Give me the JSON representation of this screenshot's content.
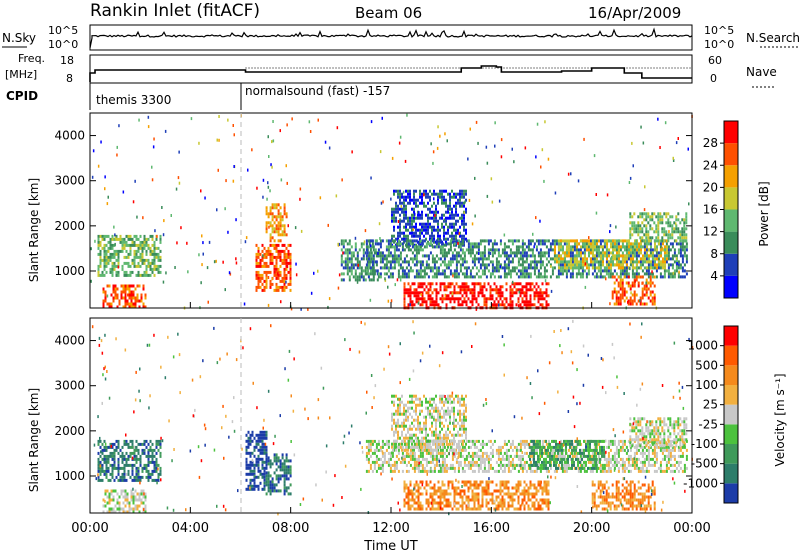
{
  "header": {
    "station": "Rankin Inlet (fitACF)",
    "beam": "Beam 06",
    "date": "16/Apr/2009"
  },
  "noise_panel": {
    "left_label": "N.Sky",
    "left_ticks": [
      "10^5",
      "10^0"
    ],
    "right_ticks": [
      "10^5",
      "10^0"
    ],
    "right_label": "N.Search"
  },
  "freq_panel": {
    "left_label_1": "Freq.",
    "left_label_2": "[MHz]",
    "left_ticks": [
      "18",
      "8"
    ],
    "right_ticks": [
      "60",
      "0"
    ],
    "right_label": "Nave",
    "cpid_label": "CPID",
    "cpid_1": "themis 3300",
    "cpid_2": "normalsound (fast) -157"
  },
  "chart_data": [
    {
      "type": "heatmap",
      "name": "power",
      "ylabel": "Slant Range [km]",
      "y_ticks": [
        "1000",
        "2000",
        "3000",
        "4000"
      ],
      "ylim": [
        180,
        4500
      ],
      "xlim": [
        0,
        24
      ],
      "colorbar": {
        "label": "Power [dB]",
        "ticks": [
          "4",
          "8",
          "12",
          "16",
          "20",
          "24",
          "28"
        ],
        "colors": [
          "#0000ff",
          "#1f3fb8",
          "#3a8c5a",
          "#5fb870",
          "#c8c832",
          "#f5a000",
          "#ff5000",
          "#ff0000"
        ]
      },
      "regions": [
        {
          "t0": 0.3,
          "t1": 2.8,
          "r0": 900,
          "r1": 1800,
          "level": 3
        },
        {
          "t0": 0.5,
          "t1": 2.2,
          "r0": 200,
          "r1": 700,
          "level": 6
        },
        {
          "t0": 6.6,
          "t1": 8.0,
          "r0": 600,
          "r1": 1600,
          "level": 6
        },
        {
          "t0": 7.0,
          "t1": 7.8,
          "r0": 1700,
          "r1": 2500,
          "level": 5
        },
        {
          "t0": 10.0,
          "t1": 11.5,
          "r0": 800,
          "r1": 1700,
          "level": 2
        },
        {
          "t0": 12.0,
          "t1": 15.0,
          "r0": 1600,
          "r1": 2800,
          "level": 1
        },
        {
          "t0": 11.0,
          "t1": 23.8,
          "r0": 900,
          "r1": 1700,
          "level": 2
        },
        {
          "t0": 12.5,
          "t1": 18.3,
          "r0": 200,
          "r1": 750,
          "level": 7
        },
        {
          "t0": 18.5,
          "t1": 23.0,
          "r0": 1100,
          "r1": 1700,
          "level": 4
        },
        {
          "t0": 20.8,
          "t1": 22.5,
          "r0": 300,
          "r1": 900,
          "level": 6
        },
        {
          "t0": 21.5,
          "t1": 23.8,
          "r0": 1700,
          "r1": 2300,
          "level": 3
        }
      ]
    },
    {
      "type": "heatmap",
      "name": "velocity",
      "ylabel": "Slant Range [km]",
      "y_ticks": [
        "1000",
        "2000",
        "3000",
        "4000"
      ],
      "ylim": [
        180,
        4500
      ],
      "xlim": [
        0,
        24
      ],
      "colorbar": {
        "label": "Velocity [m s⁻¹]",
        "ticks": [
          "1000",
          "500",
          "100",
          "25",
          "-25",
          "-100",
          "-500",
          "-1000"
        ],
        "colors": [
          "#1c3ca8",
          "#2d7d6a",
          "#3f9a5a",
          "#4cc23e",
          "#c8c8c8",
          "#f2b040",
          "#f58a1c",
          "#ff5a00",
          "#ff0000"
        ]
      },
      "regions": [
        {
          "t0": 0.3,
          "t1": 2.8,
          "r0": 900,
          "r1": 1800,
          "level": 1
        },
        {
          "t0": 0.5,
          "t1": 2.2,
          "r0": 200,
          "r1": 700,
          "level": 4
        },
        {
          "t0": 6.2,
          "t1": 7.0,
          "r0": 700,
          "r1": 2000,
          "level": 0
        },
        {
          "t0": 7.0,
          "t1": 8.0,
          "r0": 600,
          "r1": 1500,
          "level": 1
        },
        {
          "t0": 12.0,
          "t1": 15.0,
          "r0": 1600,
          "r1": 2800,
          "level": 4
        },
        {
          "t0": 11.0,
          "t1": 23.8,
          "r0": 1100,
          "r1": 1800,
          "level": 4
        },
        {
          "t0": 12.5,
          "t1": 18.3,
          "r0": 300,
          "r1": 900,
          "level": 6
        },
        {
          "t0": 17.5,
          "t1": 20.5,
          "r0": 1200,
          "r1": 1800,
          "level": 2
        },
        {
          "t0": 20.0,
          "t1": 22.5,
          "r0": 300,
          "r1": 900,
          "level": 6
        },
        {
          "t0": 21.5,
          "t1": 23.8,
          "r0": 1700,
          "r1": 2300,
          "level": 4
        }
      ]
    }
  ],
  "x_axis": {
    "ticks": [
      "00:00",
      "04:00",
      "08:00",
      "12:00",
      "16:00",
      "20:00",
      "00:00"
    ],
    "label": "Time UT"
  }
}
